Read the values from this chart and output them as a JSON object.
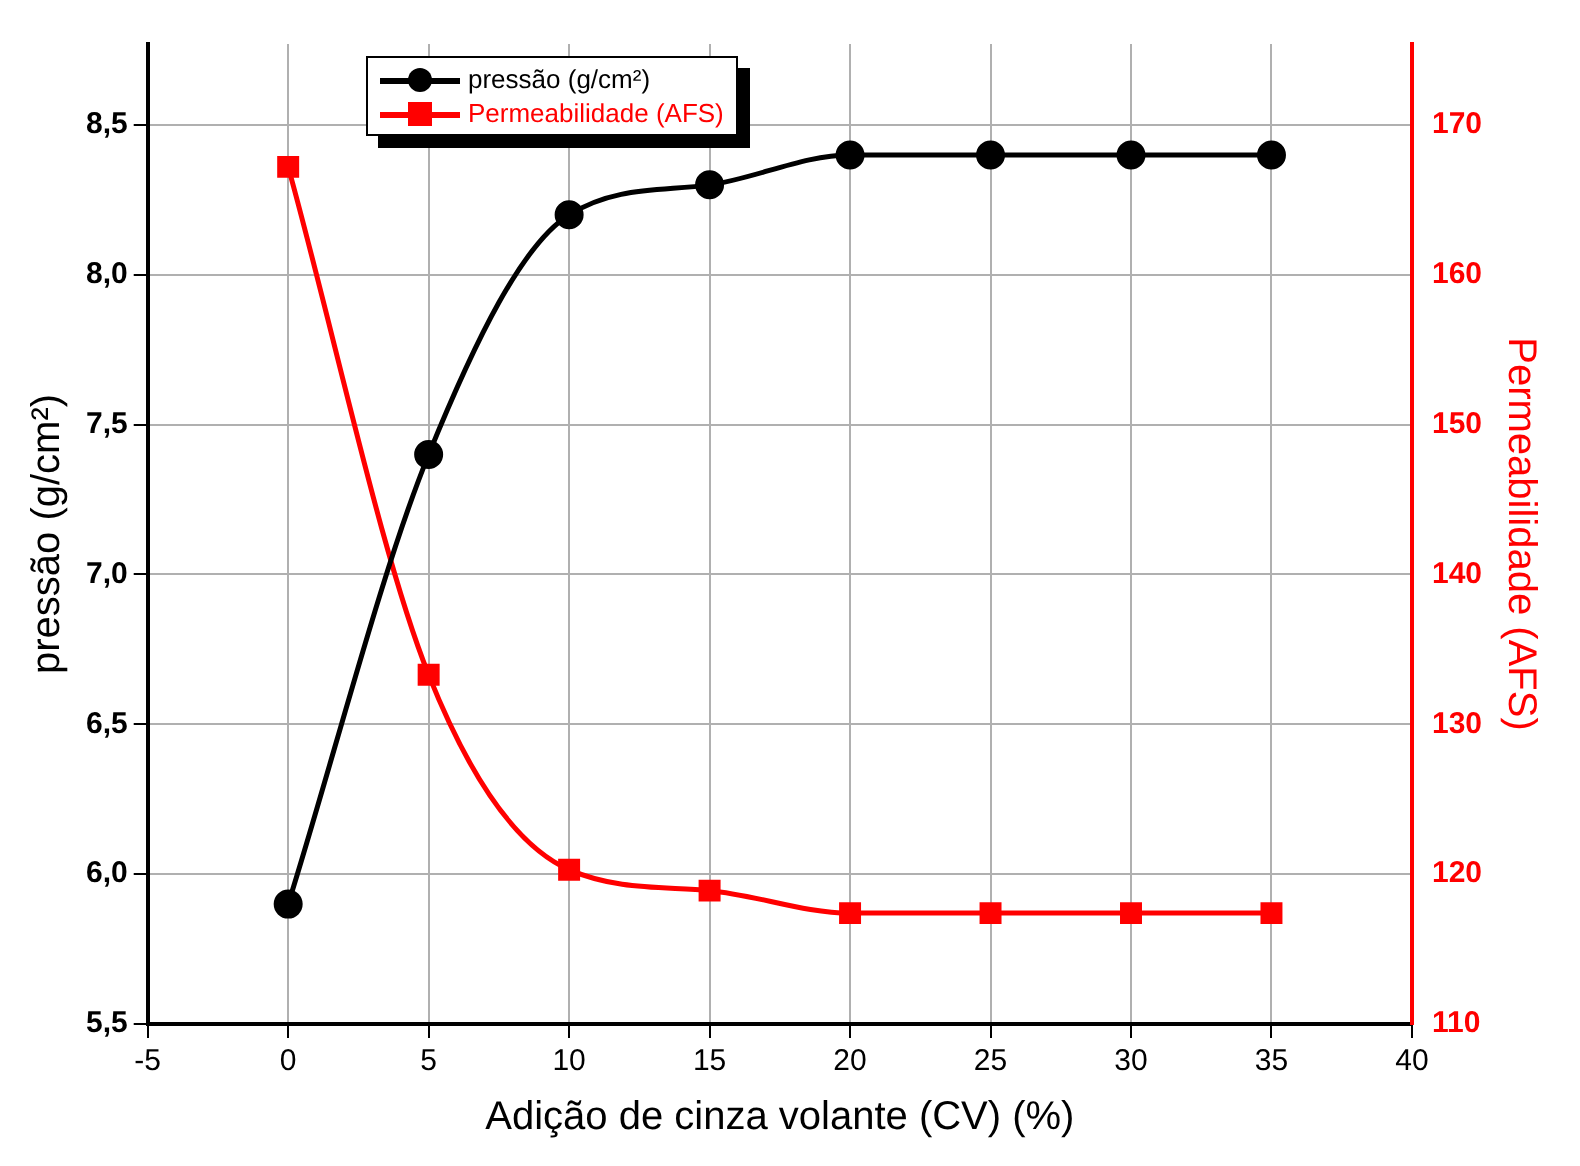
{
  "chart_data": {
    "type": "line",
    "xlabel": "Adição de cinza volante (CV) (%)",
    "ylabel": "pressão (g/cm²)",
    "y2label": "Permeabilidade (AFS)",
    "x": [
      0,
      5,
      10,
      15,
      20,
      25,
      30,
      35
    ],
    "series": [
      {
        "name": "pressão (g/cm²)",
        "color": "#000000",
        "marker": "circle",
        "values": [
          5.9,
          7.4,
          8.2,
          8.3,
          8.4,
          8.4,
          8.4,
          8.4
        ]
      },
      {
        "name": "Permeabilidade (AFS)",
        "color": "#ff0000",
        "marker": "square",
        "axis": "y2",
        "values": [
          167.2,
          133.3,
          120.3,
          118.9,
          117.4,
          117.4,
          117.4,
          117.4
        ]
      }
    ],
    "xlim": [
      -5,
      40
    ],
    "xticks": [
      -5,
      0,
      5,
      10,
      15,
      20,
      25,
      30,
      35,
      40
    ],
    "ylim": [
      5.5,
      8.77
    ],
    "yticks": [
      {
        "value": 5.5,
        "label": "5,5"
      },
      {
        "value": 6,
        "label": "6,0"
      },
      {
        "value": 6.5,
        "label": "6,5"
      },
      {
        "value": 7,
        "label": "7,0"
      },
      {
        "value": 7.5,
        "label": "7,5"
      },
      {
        "value": 8,
        "label": "8,0"
      },
      {
        "value": 8.5,
        "label": "8,5"
      }
    ],
    "y2lim": [
      110,
      175.4
    ],
    "y2ticks": [
      110,
      120,
      130,
      140,
      150,
      160,
      170
    ],
    "grid": true,
    "legend": "top left",
    "line_style": "solid"
  }
}
